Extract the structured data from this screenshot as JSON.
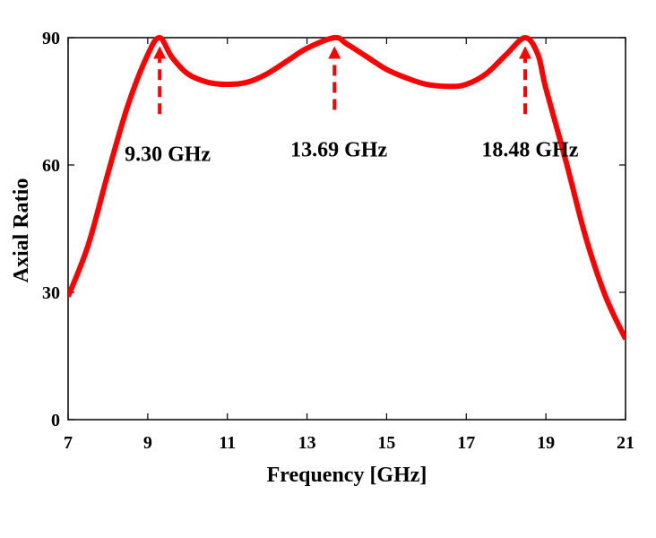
{
  "chart_data": {
    "type": "line",
    "title": "",
    "xlabel": "Frequency [GHz]",
    "ylabel": "Axial Ratio",
    "xlim": [
      7,
      21
    ],
    "ylim": [
      0,
      90
    ],
    "xticks": [
      7,
      9,
      11,
      13,
      15,
      17,
      19,
      21
    ],
    "yticks": [
      0,
      30,
      60,
      90
    ],
    "xtick_labels": [
      "7",
      "9",
      "11",
      "13",
      "15",
      "17",
      "19",
      "21"
    ],
    "ytick_labels": [
      "0",
      "30",
      "60",
      "90"
    ],
    "grid": false,
    "legend": "none",
    "colors": {
      "series": "#ff0000",
      "annotation": "#ff0000"
    },
    "series": [
      {
        "x": [
          7.0,
          7.5,
          8.0,
          8.5,
          9.0,
          9.3,
          9.6,
          10.0,
          10.5,
          11.0,
          11.5,
          12.0,
          12.5,
          13.0,
          13.69,
          14.0,
          14.5,
          15.0,
          15.5,
          16.0,
          16.6,
          17.0,
          17.5,
          18.0,
          18.48,
          18.8,
          19.0,
          19.5,
          20.0,
          20.5,
          21.0
        ],
        "y": [
          29,
          41,
          58,
          74,
          86,
          90,
          85.5,
          81.5,
          79.5,
          79,
          79.5,
          81.5,
          84.5,
          87.5,
          90,
          88.5,
          85.5,
          82.5,
          80.5,
          79,
          78.5,
          79,
          81.5,
          86,
          90,
          86,
          78,
          61,
          43,
          29,
          19
        ]
      }
    ],
    "annotations": [
      {
        "label": "9.30 GHz",
        "x": 9.3,
        "y_tip": 88,
        "y_tail": 72,
        "label_x": 9.5,
        "label_y": 61
      },
      {
        "label": "13.69 GHz",
        "x": 13.69,
        "y_tip": 88,
        "y_tail": 73,
        "label_x": 13.8,
        "label_y": 62
      },
      {
        "label": "18.48 GHz",
        "x": 18.48,
        "y_tip": 88,
        "y_tail": 72,
        "label_x": 18.6,
        "label_y": 62
      }
    ]
  }
}
